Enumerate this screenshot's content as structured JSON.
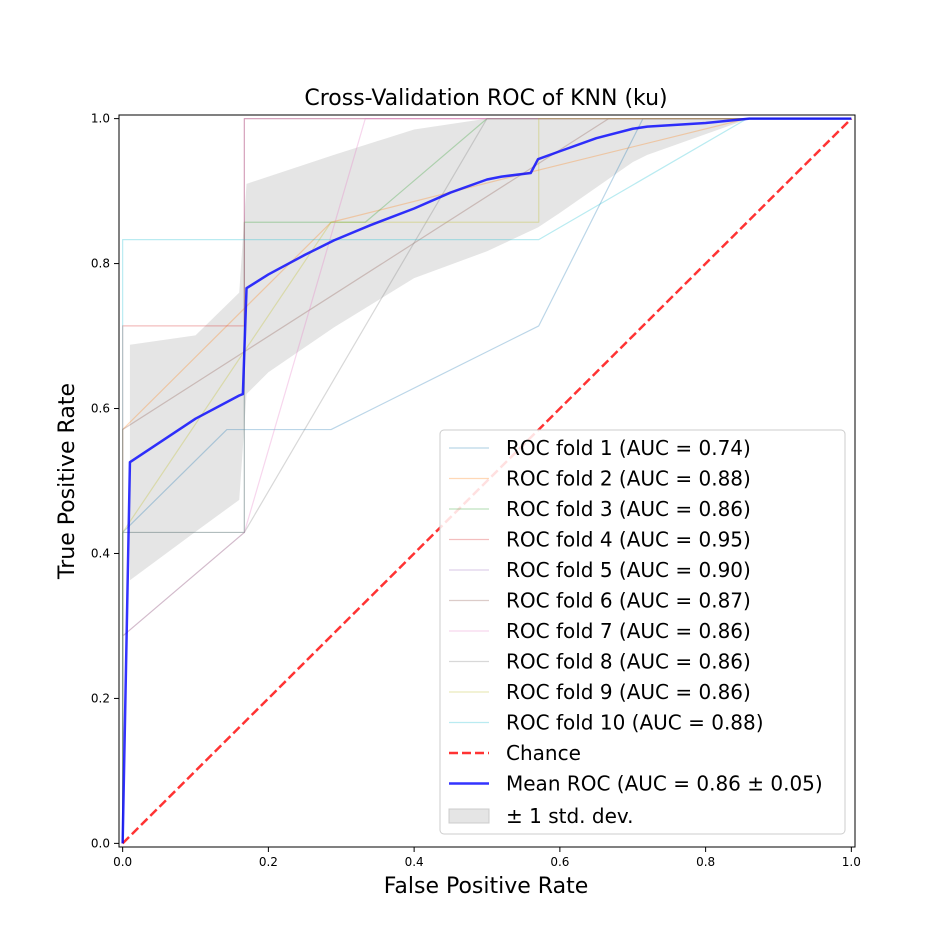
{
  "chart_data": {
    "type": "line",
    "title": "Cross-Validation ROC of KNN (ku)",
    "xlabel": "False Positive Rate",
    "ylabel": "True Positive Rate",
    "xlim": [
      -0.005,
      1.005
    ],
    "ylim": [
      -0.005,
      1.005
    ],
    "xticks": [
      "0.0",
      "0.2",
      "0.4",
      "0.6",
      "0.8",
      "1.0"
    ],
    "yticks": [
      "0.0",
      "0.2",
      "0.4",
      "0.6",
      "0.8",
      "1.0"
    ],
    "grid": false,
    "legend_position": "lower-right",
    "series": [
      {
        "name": "ROC fold 1 (AUC = 0.74)",
        "color": "#1f77b4",
        "x": [
          0,
          0,
          0.143,
          0.286,
          0.571,
          0.714,
          1
        ],
        "y": [
          0,
          0.429,
          0.571,
          0.571,
          0.714,
          1,
          1
        ]
      },
      {
        "name": "ROC fold 2 (AUC = 0.88)",
        "color": "#ff7f0e",
        "x": [
          0,
          0,
          0.286,
          0.571,
          0.857,
          1
        ],
        "y": [
          0,
          0.571,
          0.857,
          0.929,
          1,
          1
        ]
      },
      {
        "name": "ROC fold 3 (AUC = 0.86)",
        "color": "#2ca02c",
        "x": [
          0,
          0,
          0.167,
          0.167,
          0.333,
          0.5,
          1
        ],
        "y": [
          0,
          0.429,
          0.429,
          0.857,
          0.857,
          1,
          1
        ]
      },
      {
        "name": "ROC fold 4 (AUC = 0.95)",
        "color": "#d62728",
        "x": [
          0,
          0,
          0.167,
          0.167,
          1
        ],
        "y": [
          0,
          0.714,
          0.714,
          1,
          1
        ]
      },
      {
        "name": "ROC fold 5 (AUC = 0.90)",
        "color": "#9467bd",
        "x": [
          0,
          0,
          0.167,
          0.167,
          0.333,
          1
        ],
        "y": [
          0,
          0.429,
          0.429,
          1,
          1,
          1
        ]
      },
      {
        "name": "ROC fold 6 (AUC = 0.87)",
        "color": "#8c564b",
        "x": [
          0,
          0,
          0.667,
          1
        ],
        "y": [
          0,
          0.571,
          1,
          1
        ]
      },
      {
        "name": "ROC fold 7 (AUC = 0.86)",
        "color": "#e377c2",
        "x": [
          0,
          0,
          0.167,
          0.333,
          1
        ],
        "y": [
          0,
          0.286,
          0.429,
          1,
          1
        ]
      },
      {
        "name": "ROC fold 8 (AUC = 0.86)",
        "color": "#7f7f7f",
        "x": [
          0,
          0,
          0.167,
          0.333,
          0.5,
          1
        ],
        "y": [
          0,
          0.286,
          0.429,
          0.714,
          1,
          1
        ]
      },
      {
        "name": "ROC fold 9 (AUC = 0.86)",
        "color": "#bcbd22",
        "x": [
          0,
          0,
          0.286,
          0.571,
          0.571,
          1
        ],
        "y": [
          0,
          0.429,
          0.857,
          0.857,
          1,
          1
        ]
      },
      {
        "name": "ROC fold 10 (AUC = 0.88)",
        "color": "#17becf",
        "x": [
          0,
          0,
          0.571,
          0.857,
          1
        ],
        "y": [
          0,
          0.833,
          0.833,
          1,
          1
        ]
      },
      {
        "name": "Chance",
        "color": "#ff0000",
        "dashed": true,
        "x": [
          0,
          1
        ],
        "y": [
          0,
          1
        ]
      },
      {
        "name": "Mean ROC (AUC = 0.86 ± 0.05)",
        "color": "#0000ff",
        "x": [
          0,
          0.01,
          0.1,
          0.16,
          0.165,
          0.17,
          0.2,
          0.25,
          0.29,
          0.34,
          0.4,
          0.45,
          0.5,
          0.52,
          0.56,
          0.57,
          0.6,
          0.65,
          0.7,
          0.72,
          0.8,
          0.86,
          1
        ],
        "y": [
          0,
          0.526,
          0.586,
          0.618,
          0.62,
          0.766,
          0.785,
          0.812,
          0.832,
          0.853,
          0.876,
          0.898,
          0.916,
          0.92,
          0.925,
          0.944,
          0.955,
          0.973,
          0.986,
          0.989,
          0.994,
          1,
          1
        ]
      },
      {
        "name": "± 1 std. dev.",
        "color": "#cccccc",
        "fill": true,
        "x": [
          0.01,
          0.1,
          0.16,
          0.17,
          0.2,
          0.29,
          0.4,
          0.5,
          0.57,
          0.6,
          0.7,
          0.72,
          0.86,
          1
        ],
        "y_upper": [
          0.688,
          0.701,
          0.76,
          0.91,
          0.92,
          0.95,
          0.985,
          1,
          1,
          1,
          1,
          1,
          1,
          1
        ],
        "y_lower": [
          0.363,
          0.43,
          0.474,
          0.62,
          0.65,
          0.712,
          0.78,
          0.817,
          0.85,
          0.87,
          0.94,
          0.95,
          1,
          1
        ]
      }
    ]
  }
}
